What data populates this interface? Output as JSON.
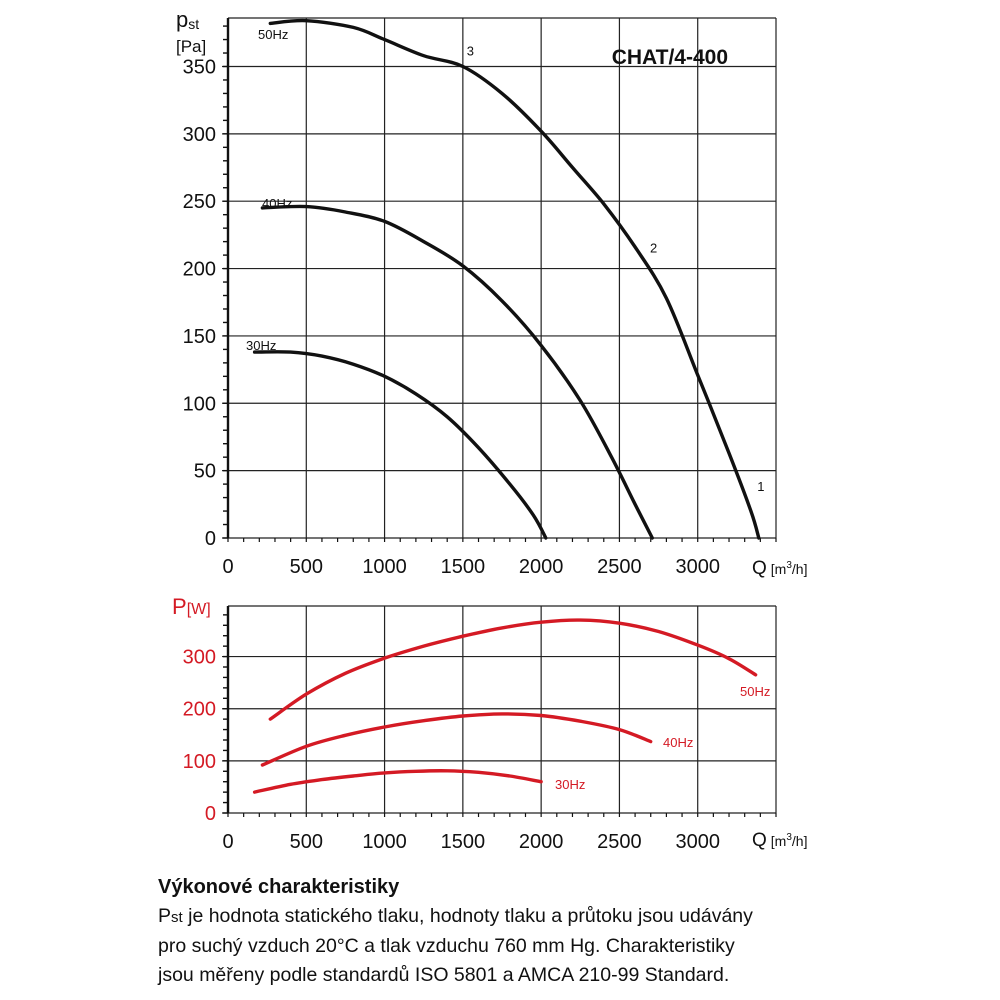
{
  "chart_data": [
    {
      "type": "line",
      "title": "CHAT/4-400",
      "ylabel_main": "p",
      "ylabel_sub": "st",
      "yunit": "[Pa]",
      "xlabel": "Q",
      "xunit_prefix": "[m",
      "xunit_exp": "3",
      "xunit_suffix": "/h]",
      "xlim": [
        0,
        3500
      ],
      "ylim": [
        0,
        380
      ],
      "x_ticks": [
        "0",
        "500",
        "1000",
        "1500",
        "2000",
        "2500",
        "3000"
      ],
      "y_ticks": [
        "0",
        "50",
        "100",
        "150",
        "200",
        "250",
        "300",
        "350"
      ],
      "grid": true,
      "series": [
        {
          "name": "50Hz",
          "x": [
            270,
            500,
            800,
            1000,
            1250,
            1500,
            1750,
            2000,
            2200,
            2400,
            2600,
            2800,
            3000,
            3200,
            3340,
            3390
          ],
          "y": [
            382,
            384,
            379,
            370,
            358,
            350,
            330,
            302,
            275,
            248,
            216,
            178,
            121,
            63,
            20,
            0
          ]
        },
        {
          "name": "40Hz",
          "x": [
            220,
            500,
            750,
            1000,
            1250,
            1500,
            1750,
            2000,
            2250,
            2450,
            2600,
            2710
          ],
          "y": [
            245,
            246,
            242,
            235,
            220,
            202,
            176,
            143,
            102,
            60,
            25,
            0
          ]
        },
        {
          "name": "30Hz",
          "x": [
            170,
            400,
            600,
            800,
            1000,
            1200,
            1400,
            1600,
            1800,
            1950,
            2030
          ],
          "y": [
            138,
            138,
            135,
            129,
            120,
            107,
            90,
            67,
            40,
            17,
            0
          ]
        }
      ],
      "annotations": [
        {
          "text": "1",
          "x": 3380,
          "y": 35
        },
        {
          "text": "2",
          "x": 2695,
          "y": 212
        },
        {
          "text": "3",
          "x": 1525,
          "y": 358
        }
      ]
    },
    {
      "type": "line",
      "ylabel_main": "P",
      "yunit": "[W]",
      "xlabel": "Q",
      "xunit_prefix": "[m",
      "xunit_exp": "3",
      "xunit_suffix": "/h]",
      "xlim": [
        0,
        3500
      ],
      "ylim": [
        0,
        380
      ],
      "x_ticks": [
        "0",
        "500",
        "1000",
        "1500",
        "2000",
        "2500",
        "3000"
      ],
      "y_ticks": [
        "0",
        "100",
        "200",
        "300"
      ],
      "grid": true,
      "color": "#d41a24",
      "series": [
        {
          "name": "50Hz",
          "x": [
            270,
            500,
            750,
            1000,
            1250,
            1500,
            1750,
            2000,
            2250,
            2500,
            2750,
            3000,
            3200,
            3370
          ],
          "y": [
            180,
            228,
            268,
            297,
            320,
            339,
            355,
            366,
            370,
            364,
            348,
            322,
            296,
            265
          ]
        },
        {
          "name": "40Hz",
          "x": [
            220,
            500,
            750,
            1000,
            1250,
            1500,
            1750,
            2000,
            2250,
            2500,
            2700
          ],
          "y": [
            92,
            128,
            149,
            165,
            177,
            186,
            190,
            187,
            176,
            160,
            137
          ]
        },
        {
          "name": "30Hz",
          "x": [
            170,
            400,
            600,
            800,
            1000,
            1200,
            1400,
            1600,
            1800,
            2000
          ],
          "y": [
            40,
            55,
            64,
            71,
            77,
            80,
            81,
            78,
            71,
            60
          ]
        }
      ]
    }
  ],
  "caption": {
    "heading": "Výkonové charakteristiky",
    "line1_prefix": "P",
    "line1_sub": "st",
    "line1_rest": " je hodnota statického tlaku, hodnoty tlaku a průtoku jsou udávány",
    "line2": "pro suchý vzduch 20°C a tlak vzduchu 760 mm Hg. Charakteristiky",
    "line3": "jsou měřeny podle standardů ISO 5801 a AMCA 210-99 Standard."
  }
}
